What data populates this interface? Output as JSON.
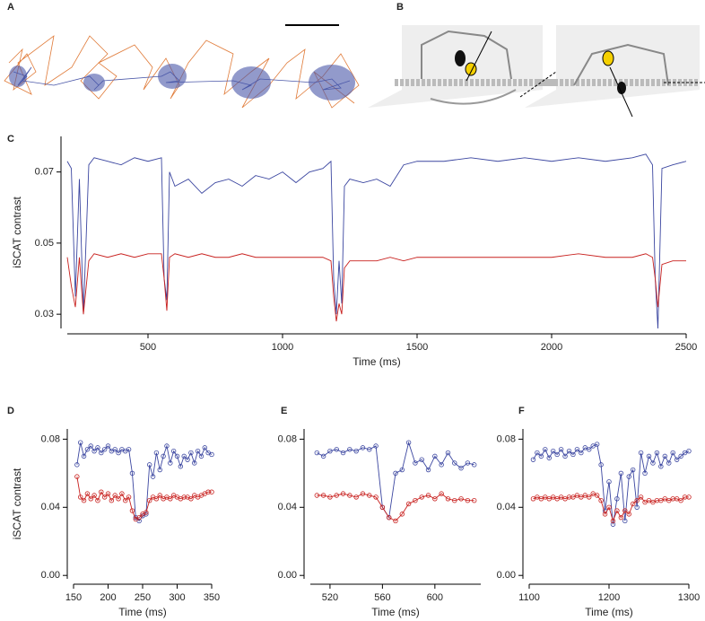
{
  "panel_a": {
    "label": "A"
  },
  "panel_b": {
    "label": "B"
  },
  "chart_data": [
    {
      "type": "line",
      "label": "C",
      "xlabel": "Time (ms)",
      "ylabel": "iSCAT contrast",
      "xlim": [
        200,
        2500
      ],
      "xticks": [
        500,
        1000,
        1500,
        2000,
        2500
      ],
      "ylim": [
        0.026,
        0.08
      ],
      "yticks": [
        0.03,
        0.05,
        0.07
      ],
      "markers": false,
      "x": [
        200,
        215,
        230,
        245,
        260,
        280,
        300,
        350,
        400,
        450,
        500,
        550,
        560,
        570,
        580,
        600,
        650,
        700,
        750,
        800,
        850,
        900,
        950,
        1000,
        1050,
        1100,
        1150,
        1180,
        1190,
        1200,
        1210,
        1220,
        1230,
        1250,
        1300,
        1350,
        1400,
        1450,
        1500,
        1600,
        1700,
        1800,
        1900,
        2000,
        2100,
        2200,
        2300,
        2350,
        2375,
        2385,
        2395,
        2410,
        2450,
        2500
      ],
      "series": [
        {
          "color": "#3b46a0",
          "values": [
            0.073,
            0.071,
            0.035,
            0.068,
            0.03,
            0.072,
            0.074,
            0.073,
            0.072,
            0.074,
            0.073,
            0.074,
            0.04,
            0.034,
            0.07,
            0.066,
            0.068,
            0.064,
            0.067,
            0.068,
            0.066,
            0.069,
            0.068,
            0.07,
            0.067,
            0.07,
            0.071,
            0.073,
            0.04,
            0.03,
            0.045,
            0.033,
            0.066,
            0.068,
            0.067,
            0.068,
            0.066,
            0.072,
            0.073,
            0.073,
            0.074,
            0.073,
            0.074,
            0.073,
            0.074,
            0.073,
            0.074,
            0.075,
            0.072,
            0.04,
            0.026,
            0.071,
            0.072,
            0.073
          ]
        },
        {
          "color": "#c8201e",
          "values": [
            0.046,
            0.038,
            0.032,
            0.046,
            0.03,
            0.045,
            0.047,
            0.046,
            0.047,
            0.046,
            0.047,
            0.047,
            0.04,
            0.031,
            0.046,
            0.047,
            0.046,
            0.047,
            0.046,
            0.046,
            0.047,
            0.046,
            0.046,
            0.046,
            0.046,
            0.046,
            0.046,
            0.045,
            0.035,
            0.028,
            0.033,
            0.03,
            0.043,
            0.045,
            0.045,
            0.045,
            0.046,
            0.045,
            0.046,
            0.046,
            0.046,
            0.046,
            0.046,
            0.046,
            0.047,
            0.046,
            0.046,
            0.047,
            0.046,
            0.04,
            0.032,
            0.044,
            0.045,
            0.045
          ]
        }
      ]
    },
    {
      "type": "line",
      "label": "D",
      "xlabel": "Time (ms)",
      "ylabel": "iSCAT contrast",
      "xlim": [
        150,
        350
      ],
      "xticks": [
        150,
        200,
        250,
        300,
        350
      ],
      "ylim": [
        -0.002,
        0.086
      ],
      "yticks": [
        {
          "value": 0,
          "label": "0.00"
        },
        0.04,
        0.08
      ],
      "markers": true,
      "x": [
        155,
        160,
        165,
        170,
        175,
        180,
        185,
        190,
        195,
        200,
        205,
        210,
        215,
        220,
        225,
        230,
        235,
        240,
        245,
        250,
        255,
        260,
        265,
        270,
        275,
        280,
        285,
        290,
        295,
        300,
        305,
        310,
        315,
        320,
        325,
        330,
        335,
        340,
        345,
        350
      ],
      "series": [
        {
          "color": "#3b46a0",
          "values": [
            0.065,
            0.078,
            0.07,
            0.074,
            0.076,
            0.073,
            0.075,
            0.072,
            0.074,
            0.076,
            0.073,
            0.074,
            0.072,
            0.074,
            0.073,
            0.074,
            0.06,
            0.034,
            0.032,
            0.035,
            0.036,
            0.065,
            0.058,
            0.072,
            0.062,
            0.07,
            0.076,
            0.066,
            0.073,
            0.07,
            0.064,
            0.07,
            0.068,
            0.072,
            0.066,
            0.073,
            0.07,
            0.075,
            0.072,
            0.071
          ]
        },
        {
          "color": "#c8201e",
          "values": [
            0.058,
            0.046,
            0.044,
            0.048,
            0.045,
            0.047,
            0.044,
            0.049,
            0.046,
            0.048,
            0.044,
            0.047,
            0.045,
            0.048,
            0.044,
            0.046,
            0.038,
            0.033,
            0.034,
            0.036,
            0.037,
            0.044,
            0.046,
            0.045,
            0.047,
            0.045,
            0.046,
            0.045,
            0.047,
            0.046,
            0.045,
            0.046,
            0.046,
            0.045,
            0.047,
            0.046,
            0.047,
            0.048,
            0.049,
            0.049
          ]
        }
      ]
    },
    {
      "type": "line",
      "label": "E",
      "xlabel": "Time (ms)",
      "xlim": [
        505,
        635
      ],
      "xticks": [
        520,
        560,
        600
      ],
      "ylim": [
        -0.002,
        0.086
      ],
      "yticks": [
        {
          "value": 0,
          "label": "0.00"
        },
        0.04,
        0.08
      ],
      "markers": true,
      "x": [
        510,
        515,
        520,
        525,
        530,
        535,
        540,
        545,
        550,
        555,
        560,
        565,
        570,
        575,
        580,
        585,
        590,
        595,
        600,
        605,
        610,
        615,
        620,
        625,
        630
      ],
      "series": [
        {
          "color": "#3b46a0",
          "values": [
            0.072,
            0.07,
            0.073,
            0.074,
            0.072,
            0.074,
            0.073,
            0.075,
            0.074,
            0.076,
            0.04,
            0.034,
            0.06,
            0.062,
            0.078,
            0.066,
            0.068,
            0.062,
            0.07,
            0.065,
            0.072,
            0.066,
            0.063,
            0.066,
            0.065
          ]
        },
        {
          "color": "#c8201e",
          "values": [
            0.047,
            0.047,
            0.046,
            0.047,
            0.048,
            0.047,
            0.046,
            0.048,
            0.047,
            0.046,
            0.04,
            0.034,
            0.032,
            0.036,
            0.042,
            0.044,
            0.046,
            0.047,
            0.045,
            0.048,
            0.045,
            0.044,
            0.045,
            0.044,
            0.044
          ]
        }
      ]
    },
    {
      "type": "line",
      "label": "F",
      "xlabel": "Time (ms)",
      "xlim": [
        1100,
        1300
      ],
      "xticks": [
        1100,
        1200,
        1300
      ],
      "ylim": [
        -0.002,
        0.086
      ],
      "yticks": [
        {
          "value": 0,
          "label": "0.00"
        },
        0.04,
        0.08
      ],
      "markers": true,
      "x": [
        1105,
        1110,
        1115,
        1120,
        1125,
        1130,
        1135,
        1140,
        1145,
        1150,
        1155,
        1160,
        1165,
        1170,
        1175,
        1180,
        1185,
        1190,
        1195,
        1200,
        1205,
        1210,
        1215,
        1220,
        1225,
        1230,
        1235,
        1240,
        1245,
        1250,
        1255,
        1260,
        1265,
        1270,
        1275,
        1280,
        1285,
        1290,
        1295,
        1300
      ],
      "series": [
        {
          "color": "#3b46a0",
          "values": [
            0.068,
            0.072,
            0.07,
            0.074,
            0.069,
            0.073,
            0.071,
            0.074,
            0.07,
            0.073,
            0.071,
            0.074,
            0.072,
            0.075,
            0.074,
            0.076,
            0.077,
            0.065,
            0.038,
            0.055,
            0.03,
            0.045,
            0.06,
            0.032,
            0.058,
            0.062,
            0.04,
            0.072,
            0.06,
            0.07,
            0.066,
            0.072,
            0.064,
            0.07,
            0.066,
            0.072,
            0.068,
            0.07,
            0.072,
            0.073
          ]
        },
        {
          "color": "#c8201e",
          "values": [
            0.045,
            0.046,
            0.045,
            0.046,
            0.045,
            0.046,
            0.045,
            0.046,
            0.045,
            0.046,
            0.046,
            0.047,
            0.046,
            0.047,
            0.046,
            0.048,
            0.047,
            0.044,
            0.036,
            0.04,
            0.032,
            0.038,
            0.034,
            0.038,
            0.036,
            0.042,
            0.044,
            0.046,
            0.043,
            0.044,
            0.043,
            0.044,
            0.044,
            0.045,
            0.044,
            0.045,
            0.045,
            0.044,
            0.046,
            0.046
          ]
        }
      ]
    }
  ]
}
